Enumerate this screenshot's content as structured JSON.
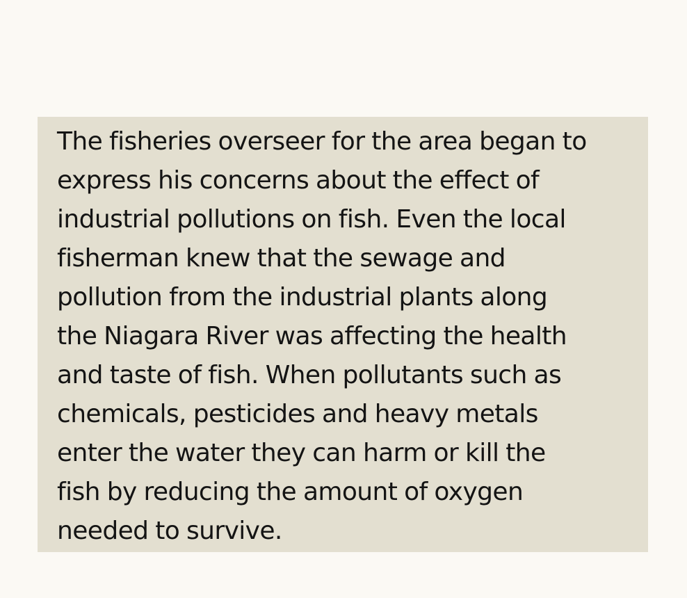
{
  "passage": {
    "lines": [
      "The fisheries overseer for the area began to",
      "express his concerns about the effect of",
      "industrial pollutions on fish. Even the local",
      "fisherman knew that the sewage and",
      "pollution from the industrial plants along",
      "the Niagara River was affecting the health",
      "and taste of fish. When pollutants such as",
      "chemicals, pesticides and heavy metals",
      "enter the water they can harm or kill the",
      "fish by reducing the amount of oxygen",
      "needed to survive."
    ]
  },
  "colors": {
    "page_background": "#fbf9f4",
    "panel_background": "#e3dfd0",
    "text": "#141414"
  }
}
